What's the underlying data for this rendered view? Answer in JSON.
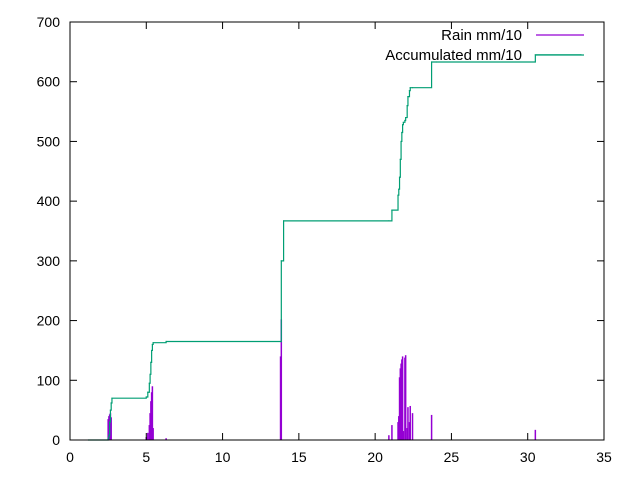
{
  "chart_data": {
    "type": "line",
    "xlim": [
      0,
      35
    ],
    "ylim": [
      0,
      700
    ],
    "x_ticks": [
      0,
      5,
      10,
      15,
      20,
      25,
      30,
      35
    ],
    "y_ticks": [
      0,
      100,
      200,
      300,
      400,
      500,
      600,
      700
    ],
    "x_tick_labels": [
      "0",
      "5",
      "10",
      "15",
      "20",
      "25",
      "30",
      "35"
    ],
    "y_tick_labels": [
      "0",
      "100",
      "200",
      "300",
      "400",
      "500",
      "600",
      "700"
    ],
    "grid": false,
    "legend_position": "top-right",
    "series": [
      {
        "name": "Rain mm/10",
        "style": "impulses",
        "color": "#9400d3",
        "x": [
          2.5,
          2.55,
          2.6,
          2.65,
          2.7,
          5.0,
          5.1,
          5.2,
          5.25,
          5.3,
          5.35,
          5.4,
          5.45,
          6.3,
          13.8,
          13.85,
          20.9,
          21.1,
          21.5,
          21.55,
          21.6,
          21.65,
          21.7,
          21.75,
          21.8,
          21.85,
          21.95,
          22.0,
          22.1,
          22.15,
          22.25,
          22.3,
          22.45,
          23.7,
          30.5
        ],
        "y": [
          35,
          40,
          43,
          45,
          38,
          5,
          12,
          25,
          45,
          65,
          80,
          90,
          20,
          3,
          140,
          202,
          8,
          25,
          30,
          40,
          105,
          120,
          128,
          135,
          140,
          15,
          138,
          142,
          20,
          55,
          30,
          57,
          45,
          42,
          17
        ]
      },
      {
        "name": "Accumulated mm/10",
        "style": "steps",
        "color": "#009e73",
        "x": [
          1.2,
          2.5,
          2.55,
          2.6,
          2.65,
          2.7,
          2.75,
          5.0,
          5.1,
          5.2,
          5.25,
          5.3,
          5.35,
          5.4,
          5.45,
          6.3,
          13.8,
          13.85,
          14.0,
          20.9,
          21.1,
          21.5,
          21.55,
          21.6,
          21.65,
          21.7,
          21.75,
          21.8,
          21.85,
          21.95,
          22.0,
          22.1,
          22.15,
          22.25,
          22.3,
          22.45,
          23.7,
          24.0,
          30.5,
          33.5
        ],
        "y": [
          0,
          3,
          8,
          30,
          50,
          62,
          70,
          72,
          80,
          95,
          110,
          130,
          150,
          160,
          163,
          165,
          165,
          300,
          367,
          367,
          385,
          410,
          420,
          440,
          470,
          500,
          515,
          528,
          532,
          535,
          540,
          560,
          575,
          585,
          590,
          590,
          633,
          633,
          645,
          645
        ]
      }
    ]
  }
}
